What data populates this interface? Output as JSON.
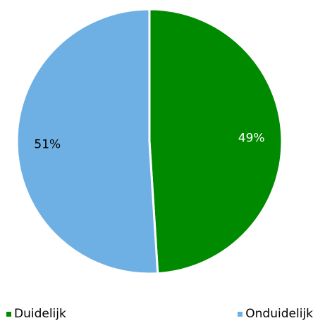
{
  "chart_data": {
    "type": "pie",
    "slices": [
      {
        "label": "Duidelijk",
        "value": 49,
        "display": "49%",
        "color": "#008a00",
        "label_color": "#ffffff"
      },
      {
        "label": "Onduidelijk",
        "value": 51,
        "display": "51%",
        "color": "#6fb0e4",
        "label_color": "#000000"
      }
    ],
    "start_angle": "12 o'clock",
    "direction": "clockwise",
    "legend_position": "bottom"
  }
}
